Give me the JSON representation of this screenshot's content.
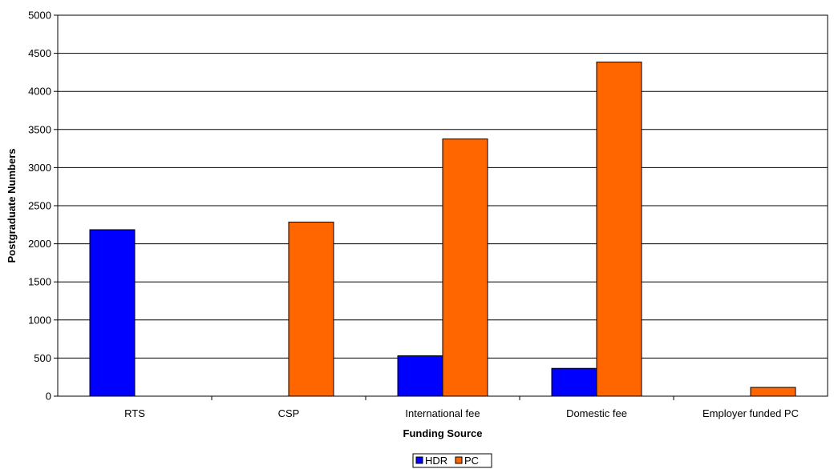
{
  "chart_data": {
    "type": "bar",
    "categories": [
      "RTS",
      "CSP",
      "International fee",
      "Domestic fee",
      "Employer funded PC"
    ],
    "series": [
      {
        "name": "HDR",
        "color": "#0000ff",
        "values": [
          2185,
          0,
          530,
          365,
          0
        ]
      },
      {
        "name": "PC",
        "color": "#ff6600",
        "values": [
          0,
          2285,
          3375,
          4385,
          115
        ]
      }
    ],
    "xlabel": "Funding Source",
    "ylabel": "Postgraduate Numbers",
    "ylim": [
      0,
      5000
    ],
    "yticks": [
      0,
      500,
      1000,
      1500,
      2000,
      2500,
      3000,
      3500,
      4000,
      4500,
      5000
    ],
    "grid": true,
    "legend_position": "bottom-center"
  }
}
